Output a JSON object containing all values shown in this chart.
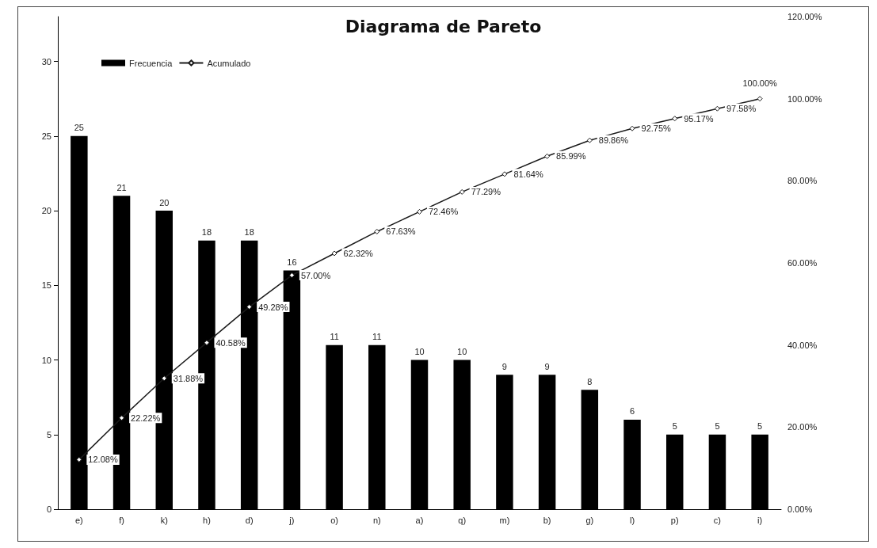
{
  "chart_data": {
    "type": "bar",
    "title": "Diagrama de Pareto",
    "categories": [
      "e)",
      "f)",
      "k)",
      "h)",
      "d)",
      "j)",
      "o)",
      "n)",
      "a)",
      "q)",
      "m)",
      "b)",
      "g)",
      "l)",
      "p)",
      "c)",
      "i)"
    ],
    "series": [
      {
        "name": "Frecuencia",
        "color": "#000000",
        "values": [
          25,
          21,
          20,
          18,
          18,
          16,
          11,
          11,
          10,
          10,
          9,
          9,
          8,
          6,
          5,
          5,
          5
        ],
        "value_labels": [
          "25",
          "21",
          "20",
          "18",
          "18",
          "16",
          "11",
          "11",
          "10",
          "10",
          "9",
          "9",
          "8",
          "6",
          "5",
          "5",
          "5"
        ]
      },
      {
        "name": "Acumulado",
        "type": "line",
        "axis": "y2",
        "color": "#1a1a1a",
        "values": [
          12.08,
          22.22,
          31.88,
          40.58,
          49.28,
          57.0,
          62.32,
          67.63,
          72.46,
          77.29,
          81.64,
          85.99,
          89.86,
          92.75,
          95.17,
          97.58,
          100.0
        ],
        "value_labels": [
          "12.08%",
          "22.22%",
          "31.88%",
          "40.58%",
          "49.28%",
          "57.00%",
          "62.32%",
          "67.63%",
          "72.46%",
          "77.29%",
          "81.64%",
          "85.99%",
          "89.86%",
          "92.75%",
          "95.17%",
          "97.58%",
          "100.00%"
        ]
      }
    ],
    "ylim": [
      0,
      33
    ],
    "yticks": [
      0,
      5,
      10,
      15,
      20,
      25,
      30
    ],
    "y2lim": [
      0,
      120
    ],
    "y2ticks": [
      {
        "value": 0,
        "label": "0.00%"
      },
      {
        "value": 20,
        "label": "20.00%"
      },
      {
        "value": 40,
        "label": "40.00%"
      },
      {
        "value": 60,
        "label": "60.00%"
      },
      {
        "value": 80,
        "label": "80.00%"
      },
      {
        "value": 100,
        "label": "100.00%"
      },
      {
        "value": 120,
        "label": "120.00%"
      }
    ],
    "grid": false,
    "legend": "top left",
    "marker": "diamond",
    "line_style": "solid"
  }
}
